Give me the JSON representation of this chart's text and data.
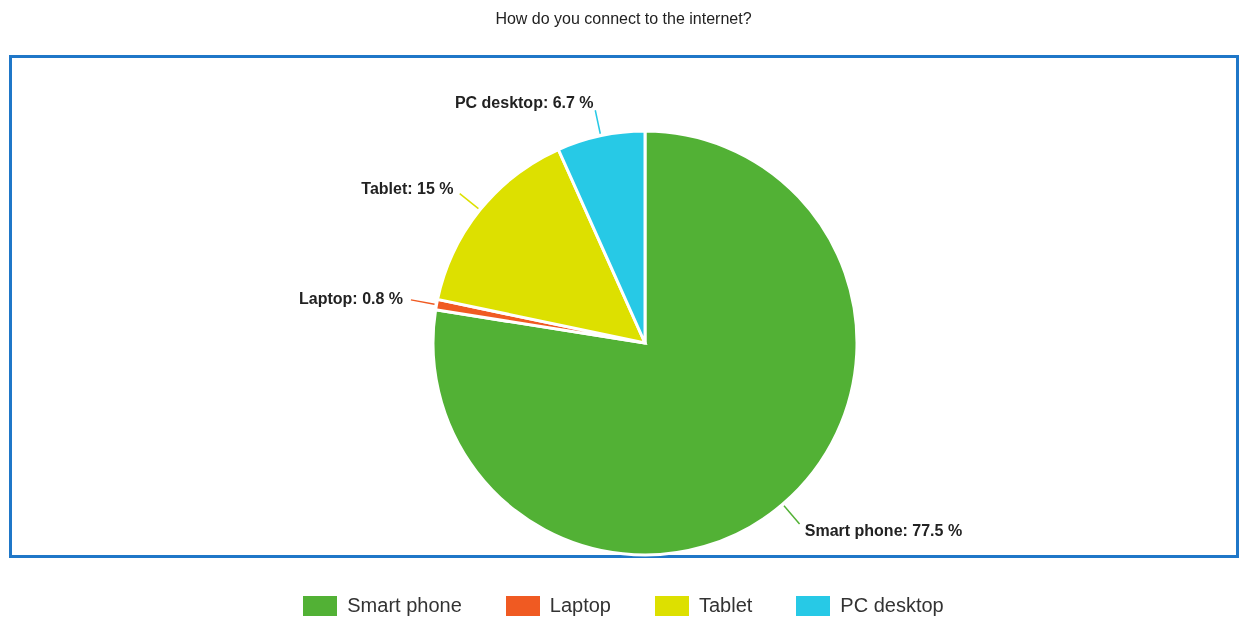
{
  "chart_data": {
    "type": "pie",
    "title": "How do you connect to the internet?",
    "categories": [
      "Smart phone",
      "Laptop",
      "Tablet",
      "PC desktop"
    ],
    "values": [
      77.5,
      0.8,
      15,
      6.7
    ],
    "colors": [
      "#52b135",
      "#f05a22",
      "#dde000",
      "#27c9e6"
    ],
    "value_labels": [
      "Smart phone: 77.5 %",
      "Laptop: 0.8 %",
      "Tablet: 15 %",
      "PC desktop: 6.7 %"
    ],
    "legend": "bottom"
  }
}
